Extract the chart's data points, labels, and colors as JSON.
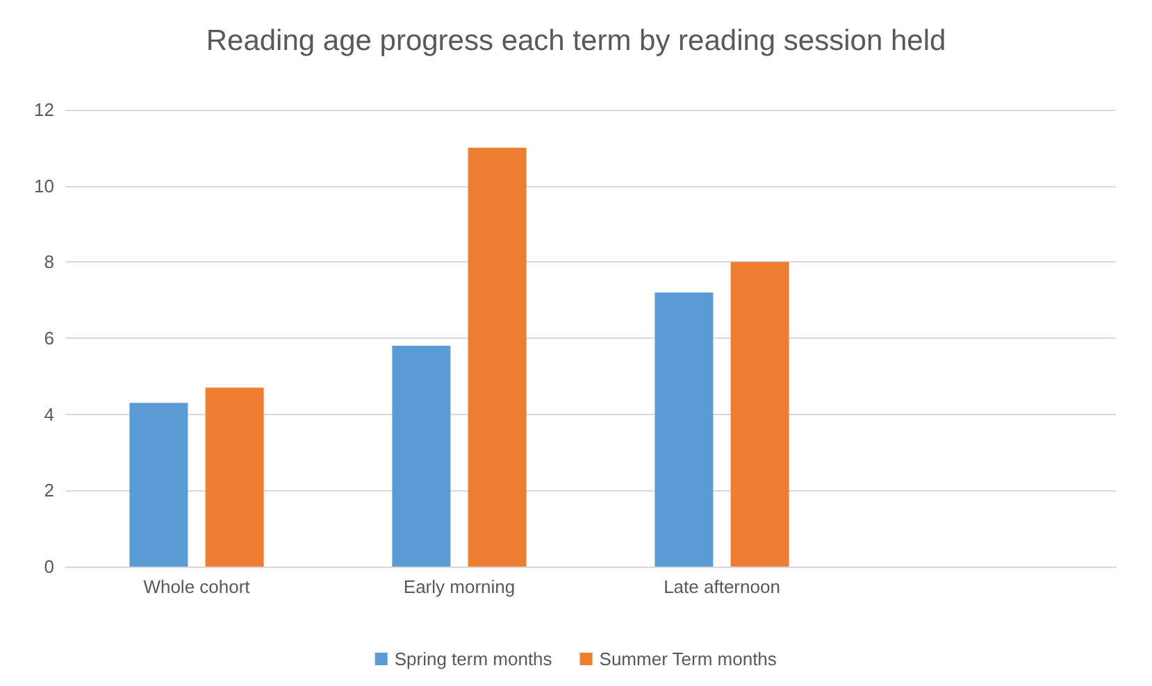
{
  "chart_data": {
    "type": "bar",
    "title": "Reading age progress each term by reading session held",
    "categories": [
      "Whole cohort",
      "Early morning",
      "Late afternoon",
      null
    ],
    "series": [
      {
        "name": "Spring term months",
        "color": "#5b9bd5",
        "values": [
          4.3,
          5.8,
          7.2,
          null
        ]
      },
      {
        "name": "Summer Term months",
        "color": "#ed7d31",
        "values": [
          4.7,
          11,
          8,
          null
        ]
      }
    ],
    "ylim": [
      0,
      12
    ],
    "yticks": [
      0,
      2,
      4,
      6,
      8,
      10,
      12
    ],
    "grid": "y",
    "legend": "bottom"
  }
}
